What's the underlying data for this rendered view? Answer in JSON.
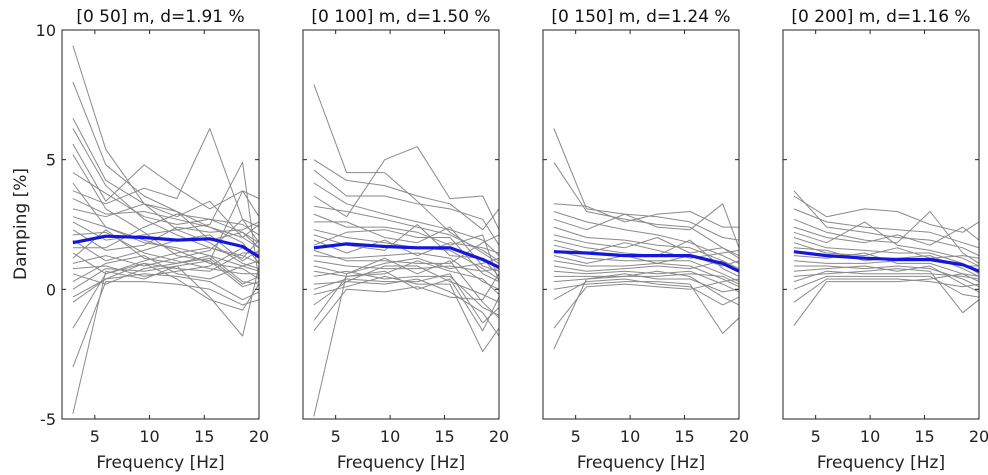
{
  "chart_data": [
    {
      "type": "line",
      "title": "[0 50] m, d=1.91 %",
      "xlabel": "Frequency [Hz]",
      "ylabel": "Damping [%]",
      "xlim": [
        2,
        20
      ],
      "ylim": [
        -5,
        10
      ],
      "xticks": [
        5,
        10,
        15,
        20
      ],
      "yticks": [
        -5,
        0,
        5,
        10
      ],
      "x": [
        3,
        6,
        9.5,
        12.5,
        15.5,
        18.5,
        20
      ],
      "mean": {
        "color": "#1515e0",
        "values": [
          1.8,
          2.05,
          2.0,
          1.9,
          1.95,
          1.65,
          1.25
        ]
      },
      "series": [
        {
          "values": [
            9.4,
            5.4,
            3.3,
            2.3,
            1.8,
            1.0,
            0.8
          ]
        },
        {
          "values": [
            8.0,
            4.8,
            3.6,
            3.0,
            2.4,
            2.0,
            1.6
          ]
        },
        {
          "values": [
            6.6,
            4.2,
            3.3,
            2.8,
            3.4,
            2.0,
            2.5
          ]
        },
        {
          "values": [
            6.2,
            4.0,
            2.7,
            2.1,
            1.6,
            1.2,
            1.9
          ]
        },
        {
          "values": [
            5.6,
            3.4,
            4.8,
            3.9,
            3.1,
            3.8,
            3.5
          ]
        },
        {
          "values": [
            5.2,
            3.1,
            2.2,
            1.3,
            1.1,
            3.8,
            2.8
          ]
        },
        {
          "values": [
            4.5,
            3.7,
            2.8,
            2.5,
            2.7,
            2.2,
            1.8
          ]
        },
        {
          "values": [
            4.1,
            2.4,
            1.9,
            1.5,
            1.0,
            0.8,
            0.4
          ]
        },
        {
          "values": [
            3.8,
            3.3,
            3.9,
            3.5,
            6.2,
            2.7,
            2.4
          ]
        },
        {
          "values": [
            3.5,
            2.9,
            3.0,
            2.7,
            2.4,
            1.8,
            1.0
          ]
        },
        {
          "values": [
            3.1,
            2.8,
            3.3,
            3.0,
            1.9,
            2.2,
            1.6
          ]
        },
        {
          "values": [
            2.8,
            2.4,
            1.8,
            1.6,
            1.3,
            0.9,
            1.1
          ]
        },
        {
          "values": [
            2.6,
            1.9,
            2.1,
            2.3,
            2.5,
            4.9,
            0.3
          ]
        },
        {
          "values": [
            2.3,
            1.5,
            1.7,
            2.4,
            2.2,
            2.3,
            2.6
          ]
        },
        {
          "values": [
            2.1,
            2.2,
            1.4,
            1.1,
            0.8,
            0.6,
            0.6
          ]
        },
        {
          "values": [
            1.9,
            1.1,
            1.5,
            1.9,
            2.1,
            1.1,
            1.5
          ]
        },
        {
          "values": [
            1.6,
            1.6,
            2.4,
            2.9,
            2.7,
            2.5,
            2.1
          ]
        },
        {
          "values": [
            1.4,
            0.6,
            1.0,
            0.8,
            0.7,
            1.4,
            1.4
          ]
        },
        {
          "values": [
            1.2,
            2.3,
            1.2,
            1.0,
            1.3,
            0.3,
            0.2
          ]
        },
        {
          "values": [
            1.0,
            1.3,
            0.9,
            1.2,
            1.5,
            2.7,
            1.8
          ]
        },
        {
          "values": [
            0.8,
            0.9,
            0.5,
            0.7,
            0.9,
            1.6,
            1.2
          ]
        },
        {
          "values": [
            0.6,
            0.2,
            0.8,
            1.0,
            1.2,
            0.2,
            0.5
          ]
        },
        {
          "values": [
            0.3,
            1.0,
            1.3,
            0.6,
            0.4,
            0.9,
            0.7
          ]
        },
        {
          "values": [
            0.0,
            0.8,
            0.7,
            0.9,
            1.1,
            0.1,
            0.3
          ]
        },
        {
          "values": [
            -0.5,
            0.4,
            0.6,
            0.5,
            0.3,
            -0.4,
            -0.1
          ]
        },
        {
          "values": [
            -1.5,
            0.6,
            1.1,
            1.4,
            1.6,
            1.3,
            1.0
          ]
        },
        {
          "values": [
            -3.0,
            0.3,
            0.3,
            0.2,
            0.0,
            -0.6,
            -0.4
          ]
        },
        {
          "values": [
            -4.8,
            0.7,
            0.4,
            0.9,
            -0.3,
            -1.8,
            0.9
          ]
        },
        {
          "values": [
            -0.3,
            0.4,
            1.0,
            0.4,
            -0.4,
            -0.8,
            0.2
          ]
        }
      ]
    },
    {
      "type": "line",
      "title": "[0 100] m, d=1.50 %",
      "xlabel": "Frequency [Hz]",
      "xlim": [
        2,
        20
      ],
      "ylim": [
        -5,
        10
      ],
      "xticks": [
        5,
        10,
        15,
        20
      ],
      "yticks": [
        -5,
        0,
        5,
        10
      ],
      "x": [
        3,
        6,
        9.5,
        12.5,
        15.5,
        18.5,
        20
      ],
      "mean": {
        "color": "#1515e0",
        "values": [
          1.6,
          1.75,
          1.65,
          1.6,
          1.6,
          1.15,
          0.85
        ]
      },
      "series": [
        {
          "values": [
            7.9,
            4.5,
            4.5,
            3.4,
            2.2,
            1.4,
            1.0
          ]
        },
        {
          "values": [
            5.0,
            4.2,
            4.0,
            3.6,
            3.3,
            2.3,
            3.1
          ]
        },
        {
          "values": [
            4.6,
            3.6,
            3.6,
            3.3,
            3.1,
            2.7,
            1.7
          ]
        },
        {
          "values": [
            4.1,
            3.3,
            2.9,
            2.6,
            2.3,
            1.9,
            1.3
          ]
        },
        {
          "values": [
            3.6,
            2.8,
            5.0,
            5.5,
            3.5,
            3.6,
            2.3
          ]
        },
        {
          "values": [
            3.2,
            3.0,
            2.7,
            2.4,
            2.1,
            1.5,
            1.1
          ]
        },
        {
          "values": [
            2.9,
            2.4,
            2.4,
            2.2,
            1.7,
            2.1,
            0.3
          ]
        },
        {
          "values": [
            2.6,
            2.6,
            2.0,
            1.8,
            2.4,
            0.9,
            0.7
          ]
        },
        {
          "values": [
            2.3,
            2.0,
            1.8,
            1.6,
            1.5,
            0.8,
            0.4
          ]
        },
        {
          "values": [
            2.1,
            1.7,
            1.5,
            2.5,
            1.3,
            1.2,
            0.5
          ]
        },
        {
          "values": [
            1.9,
            1.4,
            1.9,
            1.3,
            1.8,
            1.6,
            1.4
          ]
        },
        {
          "values": [
            1.7,
            2.2,
            2.3,
            2.0,
            2.0,
            0.6,
            0.3
          ]
        },
        {
          "values": [
            1.5,
            1.1,
            1.1,
            1.0,
            1.0,
            1.8,
            2.1
          ]
        },
        {
          "values": [
            1.3,
            1.2,
            1.3,
            1.4,
            1.2,
            0.3,
            0.0
          ]
        },
        {
          "values": [
            1.1,
            0.9,
            0.8,
            0.8,
            0.9,
            0.7,
            0.8
          ]
        },
        {
          "values": [
            0.9,
            0.6,
            1.2,
            0.6,
            1.1,
            -0.5,
            -1.1
          ]
        },
        {
          "values": [
            0.7,
            0.5,
            0.6,
            1.1,
            0.7,
            0.4,
            -0.2
          ]
        },
        {
          "values": [
            0.5,
            0.7,
            0.4,
            0.5,
            0.5,
            -0.7,
            -1.0
          ]
        },
        {
          "values": [
            0.2,
            0.3,
            0.9,
            0.9,
            0.3,
            -0.2,
            -0.5
          ]
        },
        {
          "values": [
            0.0,
            0.4,
            0.3,
            0.3,
            0.6,
            -1.3,
            -0.7
          ]
        },
        {
          "values": [
            -0.2,
            0.1,
            0.5,
            0.2,
            0.2,
            -2.4,
            -1.5
          ]
        },
        {
          "values": [
            -0.6,
            0.3,
            0.2,
            0.4,
            -0.1,
            -0.9,
            -1.8
          ]
        },
        {
          "values": [
            -1.2,
            0.5,
            0.7,
            0.0,
            0.4,
            -1.6,
            -0.3
          ]
        },
        {
          "values": [
            -1.6,
            0.0,
            -0.1,
            0.1,
            -0.3,
            -0.4,
            0.6
          ]
        },
        {
          "values": [
            -4.9,
            0.6,
            1.0,
            1.2,
            0.8,
            1.0,
            1.2
          ]
        }
      ]
    },
    {
      "type": "line",
      "title": "[0 150] m, d=1.24 %",
      "xlabel": "Frequency [Hz]",
      "xlim": [
        2,
        20
      ],
      "ylim": [
        -5,
        10
      ],
      "xticks": [
        5,
        10,
        15,
        20
      ],
      "yticks": [
        -5,
        0,
        5,
        10
      ],
      "x": [
        3,
        6,
        9.5,
        12.5,
        15.5,
        18.5,
        20
      ],
      "mean": {
        "color": "#1515e0",
        "values": [
          1.45,
          1.4,
          1.3,
          1.3,
          1.3,
          1.0,
          0.7
        ]
      },
      "series": [
        {
          "values": [
            6.2,
            3.1,
            2.9,
            2.8,
            2.6,
            2.0,
            1.9
          ]
        },
        {
          "values": [
            4.9,
            3.0,
            2.7,
            2.5,
            2.4,
            1.6,
            1.2
          ]
        },
        {
          "values": [
            3.3,
            3.2,
            2.6,
            2.9,
            3.0,
            2.4,
            2.4
          ]
        },
        {
          "values": [
            3.0,
            2.6,
            2.3,
            2.1,
            1.8,
            1.3,
            1.0
          ]
        },
        {
          "values": [
            2.7,
            2.3,
            2.9,
            2.4,
            2.3,
            3.3,
            1.6
          ]
        },
        {
          "values": [
            2.4,
            2.0,
            1.9,
            1.7,
            1.6,
            1.1,
            0.7
          ]
        },
        {
          "values": [
            2.1,
            1.8,
            1.6,
            2.0,
            1.4,
            1.6,
            1.3
          ]
        },
        {
          "values": [
            1.9,
            1.6,
            1.4,
            1.3,
            1.9,
            0.8,
            0.5
          ]
        },
        {
          "values": [
            1.7,
            1.4,
            1.8,
            1.5,
            1.2,
            1.4,
            1.5
          ]
        },
        {
          "values": [
            1.5,
            1.2,
            1.1,
            1.1,
            1.1,
            0.6,
            0.3
          ]
        },
        {
          "values": [
            1.3,
            1.0,
            1.3,
            1.0,
            1.3,
            0.9,
            1.1
          ]
        },
        {
          "values": [
            1.1,
            0.9,
            0.9,
            1.0,
            0.9,
            0.4,
            0.1
          ]
        },
        {
          "values": [
            0.9,
            0.7,
            0.8,
            0.9,
            0.8,
            1.1,
            0.8
          ]
        },
        {
          "values": [
            0.7,
            0.6,
            0.7,
            0.6,
            0.7,
            0.2,
            -0.1
          ]
        },
        {
          "values": [
            0.5,
            0.5,
            0.5,
            0.7,
            0.5,
            -0.3,
            -0.6
          ]
        },
        {
          "values": [
            0.3,
            0.4,
            0.6,
            0.4,
            0.4,
            -0.1,
            0.0
          ]
        },
        {
          "values": [
            0.0,
            0.2,
            0.3,
            0.3,
            0.2,
            -1.7,
            -1.1
          ]
        },
        {
          "values": [
            -0.4,
            0.3,
            0.4,
            0.2,
            0.1,
            -0.6,
            -0.3
          ]
        },
        {
          "values": [
            -1.5,
            0.1,
            0.2,
            0.1,
            0.0,
            0.3,
            0.4
          ]
        },
        {
          "values": [
            -2.3,
            0.4,
            0.5,
            0.5,
            0.6,
            0.5,
            0.2
          ]
        }
      ]
    },
    {
      "type": "line",
      "title": "[0 200] m, d=1.16 %",
      "xlabel": "Frequency [Hz]",
      "xlim": [
        2,
        20
      ],
      "ylim": [
        -5,
        10
      ],
      "xticks": [
        5,
        10,
        15,
        20
      ],
      "yticks": [
        -5,
        0,
        5,
        10
      ],
      "x": [
        3,
        6,
        9.5,
        12.5,
        15.5,
        18.5,
        20
      ],
      "mean": {
        "color": "#1515e0",
        "values": [
          1.45,
          1.3,
          1.2,
          1.15,
          1.15,
          0.95,
          0.7
        ]
      },
      "series": [
        {
          "values": [
            3.8,
            2.4,
            2.2,
            2.0,
            1.9,
            1.6,
            1.3
          ]
        },
        {
          "values": [
            3.6,
            2.8,
            3.1,
            3.0,
            2.5,
            2.2,
            2.6
          ]
        },
        {
          "values": [
            3.1,
            2.6,
            2.4,
            2.3,
            2.2,
            1.8,
            1.6
          ]
        },
        {
          "values": [
            2.7,
            2.2,
            1.9,
            1.8,
            3.0,
            1.4,
            1.0
          ]
        },
        {
          "values": [
            2.4,
            2.0,
            1.8,
            2.1,
            1.7,
            2.4,
            1.9
          ]
        },
        {
          "values": [
            2.2,
            1.8,
            2.6,
            1.7,
            1.5,
            1.2,
            0.9
          ]
        },
        {
          "values": [
            2.0,
            1.6,
            1.5,
            1.4,
            1.4,
            1.0,
            0.6
          ]
        },
        {
          "values": [
            1.8,
            1.4,
            1.3,
            1.6,
            1.2,
            1.3,
            1.2
          ]
        },
        {
          "values": [
            1.6,
            1.5,
            1.1,
            1.2,
            1.3,
            0.8,
            0.5
          ]
        },
        {
          "values": [
            1.3,
            1.2,
            1.4,
            1.0,
            1.0,
            0.6,
            0.3
          ]
        },
        {
          "values": [
            1.1,
            1.0,
            1.0,
            1.1,
            1.1,
            0.9,
            0.9
          ]
        },
        {
          "values": [
            0.9,
            0.9,
            0.8,
            0.9,
            0.8,
            0.4,
            0.1
          ]
        },
        {
          "values": [
            0.7,
            0.8,
            0.9,
            0.7,
            0.9,
            0.2,
            -0.1
          ]
        },
        {
          "values": [
            0.5,
            0.6,
            0.7,
            0.8,
            0.7,
            -0.9,
            -0.4
          ]
        },
        {
          "values": [
            0.3,
            0.7,
            0.6,
            0.6,
            0.6,
            0.5,
            0.4
          ]
        },
        {
          "values": [
            0.0,
            0.5,
            0.5,
            0.5,
            0.5,
            -0.2,
            -0.3
          ]
        },
        {
          "values": [
            -0.5,
            0.4,
            0.4,
            0.4,
            0.3,
            0.1,
            0.2
          ]
        },
        {
          "values": [
            -1.4,
            0.3,
            0.3,
            0.3,
            0.4,
            0.6,
            0.5
          ]
        }
      ]
    }
  ]
}
